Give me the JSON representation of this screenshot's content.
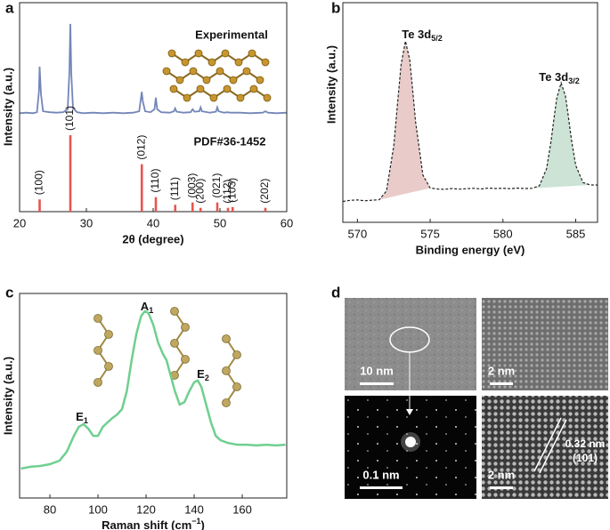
{
  "panel_labels": [
    "a",
    "b",
    "c",
    "d"
  ],
  "chart_data": [
    {
      "type": "line",
      "label": "Experimental",
      "color": "#7486b8",
      "xlim": [
        20,
        60
      ],
      "ylim": [
        0,
        110
      ],
      "x": [
        20,
        21,
        22,
        22.6,
        22.9,
        23.0,
        23.2,
        23.5,
        24.5,
        25.5,
        26.5,
        27.2,
        27.45,
        27.6,
        27.75,
        28,
        28.6,
        29.5,
        31,
        32.5,
        34,
        35.5,
        37,
        37.9,
        38.2,
        38.3,
        38.45,
        38.8,
        39.6,
        40.2,
        40.4,
        40.6,
        41.2,
        42.5,
        43.1,
        43.3,
        43.5,
        44.5,
        45.6,
        45.9,
        46.2,
        46.9,
        47.1,
        47.3,
        48.5,
        49.4,
        49.6,
        49.8,
        50.6,
        51.2,
        51.5,
        53,
        54.5,
        56.4,
        56.8,
        57.2,
        58.5,
        60
      ],
      "values": [
        8,
        8.5,
        8,
        9,
        30,
        56,
        28,
        10,
        9,
        8.5,
        9,
        12,
        50,
        100,
        48,
        13,
        9,
        8,
        8.5,
        8,
        8.5,
        8,
        8.5,
        10,
        25,
        30,
        20,
        10,
        9,
        12,
        24,
        12,
        9,
        8.5,
        10,
        13,
        9.5,
        8.5,
        9,
        12,
        9.5,
        10,
        14,
        10,
        8.5,
        9.5,
        14,
        10,
        8.5,
        9,
        8.5,
        8.5,
        8,
        8.5,
        10,
        8.5,
        8,
        8.5
      ]
    },
    {
      "type": "stick",
      "label": "PDF#36-1452",
      "color": "#e8554e",
      "x_label": "2θ (degree)",
      "y_label": "Intensity (a.u.)",
      "xlim": [
        20,
        60
      ],
      "ylim": [
        0,
        100
      ],
      "xticks": [
        20,
        30,
        40,
        50,
        60
      ],
      "x": [
        23.0,
        27.6,
        38.3,
        40.4,
        43.3,
        45.9,
        47.1,
        49.6,
        51.2,
        51.9,
        56.8
      ],
      "values": [
        16,
        100,
        62,
        19,
        9,
        12,
        5,
        12,
        5,
        6,
        5
      ],
      "labels": [
        "(100)",
        "(101)",
        "(012)",
        "(110)",
        "(111)",
        "(003)",
        "(200)",
        "(021)",
        "(112)",
        "(103)",
        "(202)"
      ]
    },
    {
      "type": "line",
      "x_label": "Binding energy (eV)",
      "y_label": "Intensity (a.u.)",
      "xlim": [
        569,
        586.5
      ],
      "ylim": [
        0,
        100
      ],
      "xticks": [
        570,
        575,
        580,
        585
      ],
      "x": [
        569,
        569.5,
        570,
        570.5,
        571,
        571.5,
        572,
        572.5,
        572.8,
        573,
        573.3,
        573.6,
        573.8,
        574,
        574.5,
        575,
        575.5,
        576,
        576.5,
        577,
        577.5,
        578,
        578.5,
        579,
        579.5,
        580,
        580.5,
        581,
        581.5,
        582,
        582.5,
        583,
        583.3,
        583.5,
        583.7,
        584,
        584.3,
        584.5,
        584.7,
        585,
        585.5,
        586,
        586.5
      ],
      "annotations": [
        {
          "text": "Te 3d",
          "sub": "5/2"
        },
        {
          "text": "Te 3d",
          "sub": "3/2"
        }
      ],
      "series": [
        {
          "color": "#e7c6c4",
          "fill": true,
          "x": [
            571.5,
            572,
            572.5,
            572.8,
            573,
            573.3,
            573.6,
            573.8,
            574,
            574.5,
            575
          ],
          "values": [
            10.3,
            14.3,
            34.8,
            57.2,
            71.8,
            82.5,
            73.8,
            60.2,
            45.7,
            21.5,
            15.6
          ]
        },
        {
          "color": "#c6e0d0",
          "fill": true,
          "x": [
            582,
            582.5,
            583,
            583.3,
            583.5,
            583.7,
            584,
            584.3,
            584.5,
            584.7,
            585,
            585.5,
            586
          ],
          "values": [
            15.5,
            16.6,
            24.4,
            36.7,
            47,
            56.5,
            63.5,
            57.5,
            48,
            37.9,
            25.9,
            18.1,
            17
          ]
        },
        {
          "color": "#222222",
          "dashed": true,
          "values": [
            9.5,
            10,
            10.2,
            9.8,
            10.1,
            10.3,
            14.3,
            34.8,
            57.2,
            71.8,
            82.5,
            73.8,
            60.2,
            45.7,
            21.5,
            15.6,
            15.2,
            15,
            15.4,
            15.1,
            15.3,
            15.5,
            15.2,
            15.6,
            15.4,
            15.5,
            15.3,
            15.6,
            15.4,
            15.5,
            16.6,
            24.4,
            36.7,
            47,
            56.5,
            63.5,
            57.5,
            48,
            37.9,
            25.9,
            18.1,
            17,
            17
          ]
        }
      ]
    },
    {
      "type": "line",
      "x_label": [
        "Raman shift (cm",
        "−1",
        ")"
      ],
      "y_label": "Intensity (a.u.)",
      "xlim": [
        67.4,
        178.5
      ],
      "ylim": [
        0,
        100
      ],
      "xticks": [
        80,
        100,
        120,
        140,
        160
      ],
      "color": "#6fcf8f",
      "annotations": [
        {
          "text": "E",
          "sub": "1"
        },
        {
          "text": "A",
          "sub": "1"
        },
        {
          "text": "E",
          "sub": "2"
        }
      ],
      "x": [
        68,
        72,
        76,
        80,
        84,
        87,
        90,
        92,
        94,
        96,
        98,
        100,
        102,
        104,
        106,
        108,
        110,
        112,
        114,
        116,
        118,
        119.5,
        121,
        123,
        125,
        127,
        128.5,
        130,
        132,
        134,
        136,
        138,
        140,
        141.5,
        143,
        145,
        147,
        149,
        151,
        154,
        158,
        162,
        166,
        170,
        174,
        178
      ],
      "values": [
        14.9,
        15.8,
        16.2,
        17.1,
        18.9,
        23.4,
        31.5,
        36.0,
        37.4,
        35.1,
        31.5,
        31.5,
        36.0,
        38.3,
        40.5,
        42.3,
        45.0,
        54.1,
        69.8,
        83.3,
        92.3,
        94.6,
        93.7,
        87.8,
        78.8,
        73.0,
        69.8,
        63.1,
        54.1,
        47.3,
        48.6,
        54.1,
        58.6,
        59.5,
        56.3,
        47.3,
        38.3,
        31.5,
        29.3,
        27.9,
        27.0,
        27.0,
        26.6,
        27.0,
        26.6,
        27.0
      ]
    }
  ],
  "tem_images": [
    {
      "scale_bar": "10 nm"
    },
    {
      "scale_bar": "2 nm"
    },
    {
      "scale_bar": "0.1 nm"
    },
    {
      "scale_bar": "2 nm",
      "annotation": [
        "0.32 nm",
        "(101)"
      ]
    }
  ]
}
